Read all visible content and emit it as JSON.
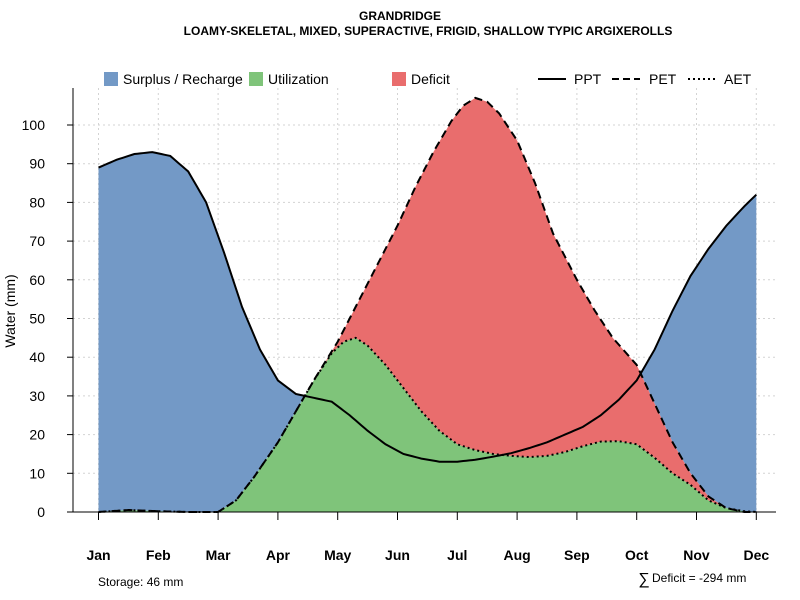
{
  "chart_data": {
    "type": "area",
    "title": "GRANDRIDGE",
    "subtitle": "LOAMY-SKELETAL, MIXED, SUPERACTIVE, FRIGID, SHALLOW TYPIC ARGIXEROLLS",
    "xlabel": "",
    "ylabel": "Water (mm)",
    "ylim": [
      0,
      108
    ],
    "yticks": [
      0,
      10,
      20,
      30,
      40,
      50,
      60,
      70,
      80,
      90,
      100
    ],
    "categories": [
      "Jan",
      "Feb",
      "Mar",
      "Apr",
      "May",
      "Jun",
      "Jul",
      "Aug",
      "Sep",
      "Oct",
      "Nov",
      "Dec"
    ],
    "grid": true,
    "legend_position": "top",
    "series": [
      {
        "name": "PPT",
        "style": "solid",
        "x": [
          0,
          0.3,
          0.6,
          0.9,
          1.2,
          1.5,
          1.8,
          2.1,
          2.4,
          2.7,
          3.0,
          3.3,
          3.6,
          3.9,
          4.2,
          4.5,
          4.8,
          5.1,
          5.4,
          5.7,
          6.0,
          6.3,
          6.6,
          6.9,
          7.2,
          7.5,
          7.8,
          8.1,
          8.4,
          8.7,
          9.0,
          9.3,
          9.6,
          9.9,
          10.2,
          10.5,
          10.8,
          11.0
        ],
        "values": [
          89,
          91,
          92.5,
          93,
          92,
          88,
          80,
          67,
          53,
          42,
          34,
          30.5,
          29.5,
          28.5,
          25,
          21,
          17.5,
          15,
          13.8,
          13,
          13,
          13.5,
          14.3,
          15.2,
          16.5,
          18,
          20,
          22,
          25,
          29,
          34,
          42,
          52,
          61,
          68,
          74,
          79,
          82
        ]
      },
      {
        "name": "PET",
        "style": "dashed",
        "x": [
          0,
          0.5,
          1.0,
          1.5,
          2.0,
          2.3,
          2.6,
          3.0,
          3.3,
          3.6,
          4.0,
          4.3,
          4.6,
          5.0,
          5.3,
          5.6,
          5.9,
          6.1,
          6.3,
          6.5,
          6.7,
          7.0,
          7.3,
          7.6,
          8.0,
          8.3,
          8.6,
          9.0,
          9.3,
          9.6,
          9.9,
          10.2,
          10.5,
          10.8,
          11.0
        ],
        "values": [
          0,
          0.5,
          0.2,
          0,
          0,
          3,
          9,
          18,
          26,
          34,
          44,
          53,
          62,
          74,
          84,
          93,
          101,
          105,
          107,
          106,
          103,
          96,
          85,
          72,
          60,
          52,
          45,
          38,
          28,
          18,
          10,
          4,
          1,
          0,
          0
        ]
      },
      {
        "name": "AET",
        "style": "dotted",
        "x": [
          0,
          0.5,
          1.0,
          1.5,
          2.0,
          2.3,
          2.6,
          3.0,
          3.3,
          3.6,
          3.9,
          4.1,
          4.3,
          4.5,
          4.8,
          5.1,
          5.4,
          5.7,
          6.0,
          6.3,
          6.6,
          6.9,
          7.2,
          7.5,
          7.8,
          8.1,
          8.4,
          8.7,
          9.0,
          9.3,
          9.6,
          9.9,
          10.2,
          10.5,
          10.8,
          11.0
        ],
        "values": [
          0,
          0.5,
          0.2,
          0,
          0,
          3,
          9,
          18,
          26,
          34,
          41,
          44,
          45,
          43,
          38,
          32,
          26,
          21,
          17.5,
          16,
          15,
          14.5,
          14.2,
          14.5,
          15.5,
          17,
          18.2,
          18.3,
          17.5,
          14,
          10,
          7,
          3,
          1,
          0.2,
          0
        ]
      }
    ],
    "areas": [
      {
        "name": "Surplus / Recharge",
        "color": "#7399c6"
      },
      {
        "name": "Utilization",
        "color": "#7fc47a"
      },
      {
        "name": "Deficit",
        "color": "#e96d6d"
      }
    ],
    "annotations": {
      "storage": "Storage: 46 mm",
      "deficit_symbol": "∑",
      "deficit": "Deficit = -294 mm"
    }
  }
}
